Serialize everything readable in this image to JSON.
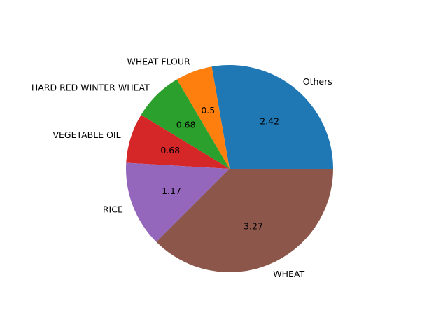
{
  "chart_data": {
    "type": "pie",
    "start_angle": 0,
    "direction": "counterclockwise",
    "slices": [
      {
        "label": "Others",
        "value": 2.42,
        "value_label": "2.42",
        "color": "#1f77b4"
      },
      {
        "label": "WHEAT FLOUR",
        "value": 0.5,
        "value_label": "0.5",
        "color": "#ff7f0e"
      },
      {
        "label": "HARD RED WINTER WHEAT",
        "value": 0.68,
        "value_label": "0.68",
        "color": "#2ca02c"
      },
      {
        "label": "VEGETABLE OIL",
        "value": 0.68,
        "value_label": "0.68",
        "color": "#d62728"
      },
      {
        "label": "RICE",
        "value": 1.17,
        "value_label": "1.17",
        "color": "#9467bd"
      },
      {
        "label": "WHEAT",
        "value": 3.27,
        "value_label": "3.27",
        "color": "#8c564b"
      }
    ]
  }
}
